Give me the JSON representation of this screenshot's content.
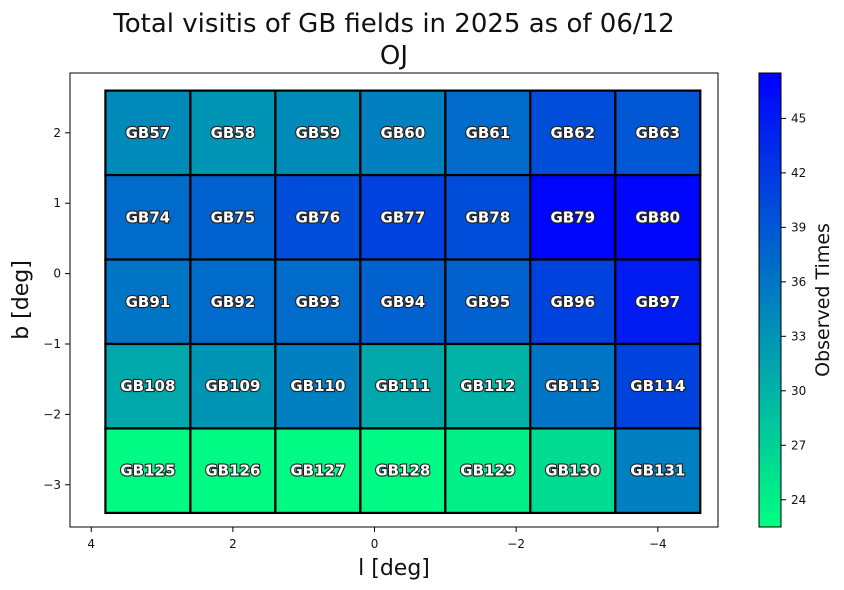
{
  "chart_data": {
    "type": "heatmap",
    "title": "Total visitis of GB fields in 2025 as of 06/12",
    "subtitle": "OJ",
    "xlabel": "l [deg]",
    "ylabel": "b [deg]",
    "xlim": [
      4.3,
      -4.85
    ],
    "ylim": [
      -3.6,
      2.85
    ],
    "x_ticks": [
      4,
      2,
      0,
      -2,
      -4
    ],
    "x_tick_labels": [
      "4",
      "2",
      "0",
      "−2",
      "−4"
    ],
    "y_ticks": [
      2,
      1,
      0,
      -1,
      -2,
      -3
    ],
    "y_tick_labels": [
      "2",
      "1",
      "0",
      "−1",
      "−2",
      "−3"
    ],
    "colorbar": {
      "label": "Observed Times",
      "range": [
        22.5,
        47.5
      ],
      "ticks": [
        24,
        27,
        30,
        33,
        36,
        39,
        42,
        45
      ],
      "colormap": "winter_r",
      "low_color": "#00ff80",
      "high_color": "#0000ff"
    },
    "column_centers_l": [
      3.2,
      2.0,
      0.8,
      -0.4,
      -1.6,
      -2.8,
      -4.0
    ],
    "row_centers_b": [
      2.0,
      0.8,
      -0.4,
      -1.6,
      -2.8
    ],
    "cell_width_deg": 1.2,
    "cell_height_deg": 1.2,
    "cells": [
      [
        {
          "label": "GB57",
          "value": 34
        },
        {
          "label": "GB58",
          "value": 33
        },
        {
          "label": "GB59",
          "value": 34
        },
        {
          "label": "GB60",
          "value": 35
        },
        {
          "label": "GB61",
          "value": 37
        },
        {
          "label": "GB62",
          "value": 40
        },
        {
          "label": "GB63",
          "value": 39
        }
      ],
      [
        {
          "label": "GB74",
          "value": 37
        },
        {
          "label": "GB75",
          "value": 38
        },
        {
          "label": "GB76",
          "value": 40
        },
        {
          "label": "GB77",
          "value": 41
        },
        {
          "label": "GB78",
          "value": 40
        },
        {
          "label": "GB79",
          "value": 47
        },
        {
          "label": "GB80",
          "value": 47
        }
      ],
      [
        {
          "label": "GB91",
          "value": 36
        },
        {
          "label": "GB92",
          "value": 37
        },
        {
          "label": "GB93",
          "value": 37
        },
        {
          "label": "GB94",
          "value": 38
        },
        {
          "label": "GB95",
          "value": 38
        },
        {
          "label": "GB96",
          "value": 41
        },
        {
          "label": "GB97",
          "value": 45
        }
      ],
      [
        {
          "label": "GB108",
          "value": 31
        },
        {
          "label": "GB109",
          "value": 33
        },
        {
          "label": "GB110",
          "value": 35
        },
        {
          "label": "GB111",
          "value": 31
        },
        {
          "label": "GB112",
          "value": 30
        },
        {
          "label": "GB113",
          "value": 36
        },
        {
          "label": "GB114",
          "value": 41
        }
      ],
      [
        {
          "label": "GB125",
          "value": 23
        },
        {
          "label": "GB126",
          "value": 23
        },
        {
          "label": "GB127",
          "value": 23
        },
        {
          "label": "GB128",
          "value": 23
        },
        {
          "label": "GB129",
          "value": 24
        },
        {
          "label": "GB130",
          "value": 26
        },
        {
          "label": "GB131",
          "value": 35
        }
      ]
    ]
  }
}
